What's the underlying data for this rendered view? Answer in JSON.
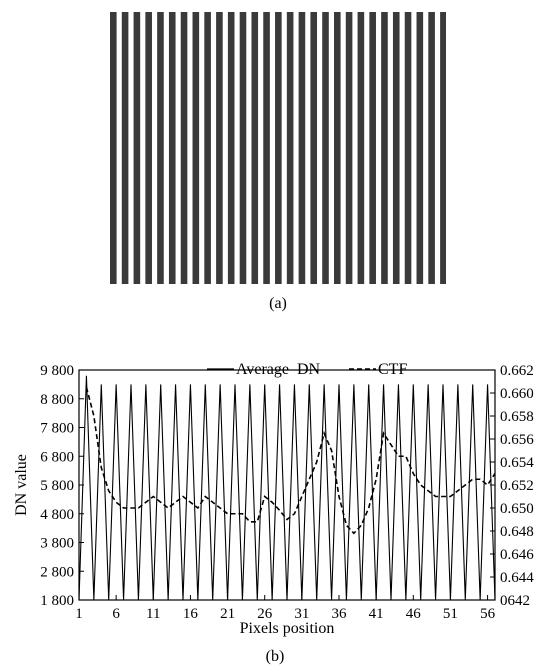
{
  "panel_a": {
    "caption": "(a)",
    "stripe_count": 29,
    "stripe_color": "#3a3a3a",
    "gap_color": "#ffffff"
  },
  "panel_b": {
    "caption": "(b)"
  },
  "chart_data": {
    "type": "line",
    "xlabel": "Pixels position",
    "ylabel": "DN value",
    "xlim": [
      1,
      57
    ],
    "x_ticks": [
      1,
      6,
      11,
      16,
      21,
      26,
      31,
      36,
      41,
      46,
      51,
      56
    ],
    "ylim_left": [
      1800,
      9800
    ],
    "y_ticks_left": [
      "1 800",
      "2 800",
      "3 800",
      "4 800",
      "5 800",
      "6 800",
      "7 800",
      "8 800",
      "9 800"
    ],
    "ylim_right": [
      0.642,
      0.662
    ],
    "y_ticks_right": [
      "0642",
      "0.644",
      "0.646",
      "0.648",
      "0.650",
      "0.652",
      "0.654",
      "0.656",
      "0.658",
      "0.660",
      "0.662"
    ],
    "grid": false,
    "legend_position": "top",
    "legend": [
      {
        "label": "Average  DN",
        "style": "solid"
      },
      {
        "label": "CTF",
        "style": "dashed"
      }
    ],
    "series": [
      {
        "name": "Average  DN",
        "axis": "left",
        "style": "solid",
        "x": [
          1,
          2,
          3,
          4,
          5,
          6,
          7,
          8,
          9,
          10,
          11,
          12,
          13,
          14,
          15,
          16,
          17,
          18,
          19,
          20,
          21,
          22,
          23,
          24,
          25,
          26,
          27,
          28,
          29,
          30,
          31,
          32,
          33,
          34,
          35,
          36,
          37,
          38,
          39,
          40,
          41,
          42,
          43,
          44,
          45,
          46,
          47,
          48,
          49,
          50,
          51,
          52,
          53,
          54,
          55,
          56,
          57
        ],
        "values": [
          1800,
          9600,
          1800,
          9300,
          1800,
          9300,
          1800,
          9300,
          1800,
          9300,
          1800,
          9300,
          1800,
          9300,
          1800,
          9300,
          1800,
          9300,
          1800,
          9300,
          1800,
          9300,
          1800,
          9300,
          1800,
          9300,
          1800,
          9300,
          1800,
          9300,
          1800,
          9300,
          1800,
          9300,
          1800,
          9300,
          1800,
          9300,
          1800,
          9300,
          1800,
          9300,
          1800,
          9300,
          1800,
          9300,
          1800,
          9300,
          1800,
          9300,
          1800,
          9300,
          1800,
          9300,
          1800,
          9300,
          1800
        ]
      },
      {
        "name": "CTF",
        "axis": "right",
        "style": "dashed",
        "x": [
          2,
          3,
          4,
          5,
          6,
          7,
          8,
          9,
          10,
          11,
          12,
          13,
          14,
          15,
          16,
          17,
          18,
          19,
          20,
          21,
          22,
          23,
          24,
          25,
          26,
          27,
          28,
          29,
          30,
          31,
          32,
          33,
          34,
          35,
          36,
          37,
          38,
          39,
          40,
          41,
          42,
          43,
          44,
          45,
          46,
          47,
          48,
          49,
          50,
          51,
          52,
          53,
          54,
          55,
          56,
          57
        ],
        "values": [
          0.6605,
          0.658,
          0.6535,
          0.6515,
          0.6505,
          0.65,
          0.65,
          0.65,
          0.6505,
          0.651,
          0.6505,
          0.65,
          0.6505,
          0.651,
          0.6505,
          0.65,
          0.651,
          0.6505,
          0.65,
          0.6495,
          0.6495,
          0.6495,
          0.6488,
          0.6488,
          0.651,
          0.6505,
          0.6498,
          0.649,
          0.6495,
          0.651,
          0.6525,
          0.654,
          0.6565,
          0.655,
          0.651,
          0.6485,
          0.6478,
          0.6485,
          0.65,
          0.6525,
          0.6565,
          0.6555,
          0.6545,
          0.6545,
          0.653,
          0.652,
          0.6515,
          0.651,
          0.651,
          0.651,
          0.6515,
          0.652,
          0.6525,
          0.6525,
          0.652,
          0.653
        ]
      }
    ]
  }
}
